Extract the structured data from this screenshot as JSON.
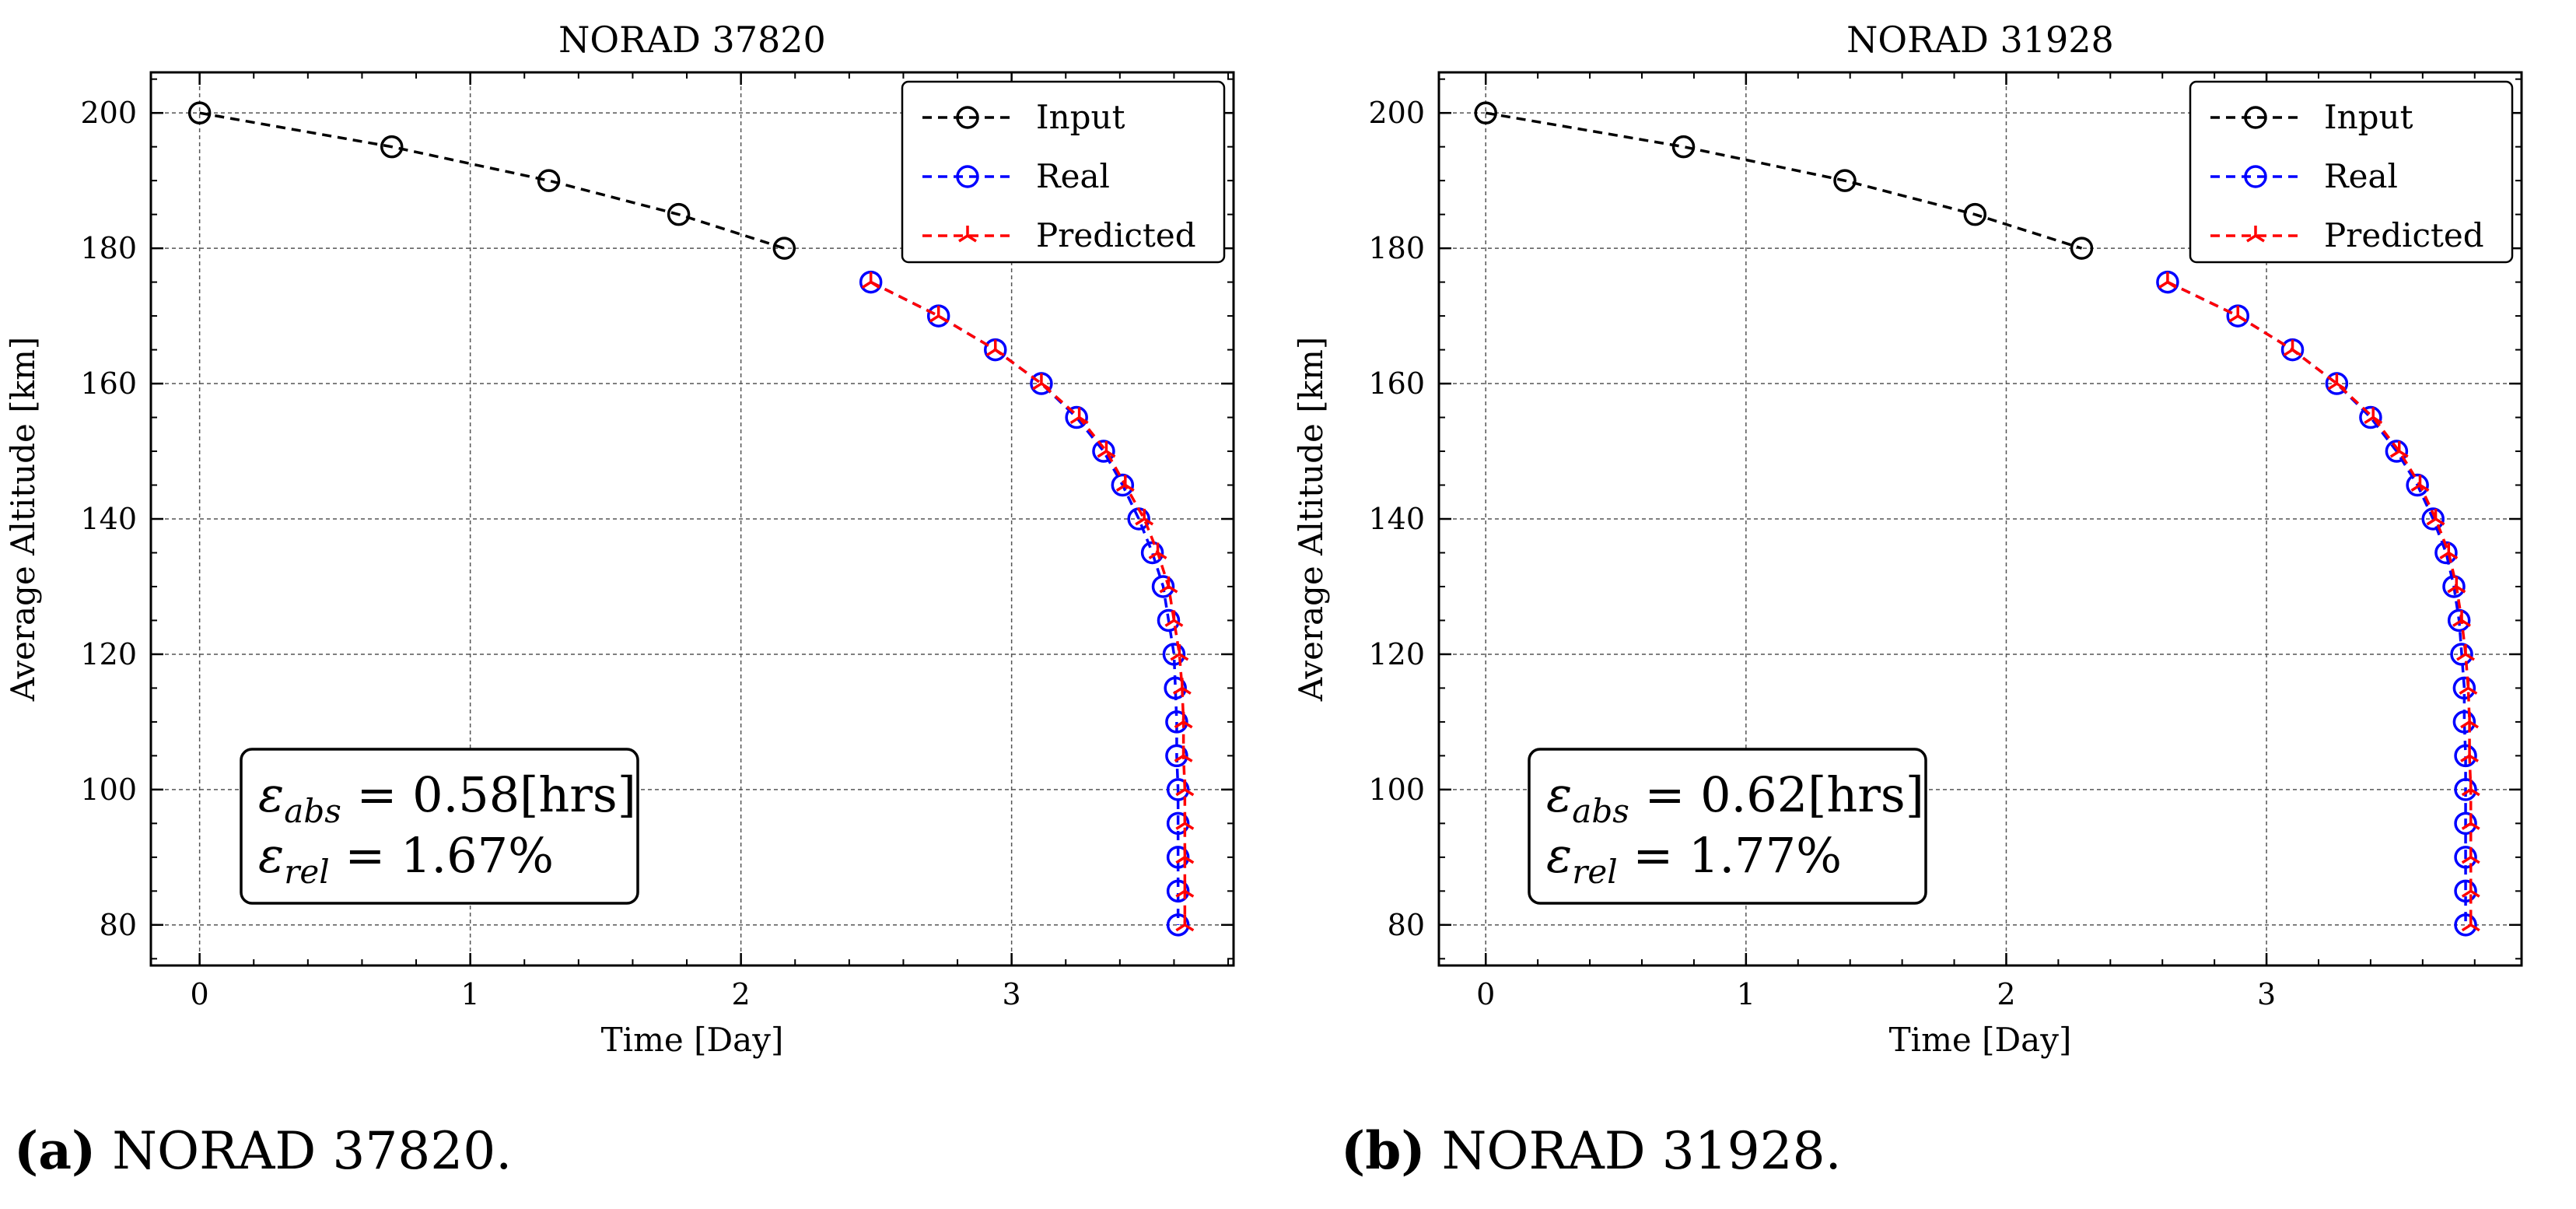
{
  "chart_data": [
    {
      "type": "line",
      "title": "NORAD 37820",
      "xlabel": "Time [Day]",
      "ylabel": "Average Altitude [km]",
      "xlim": [
        -0.18,
        3.82
      ],
      "ylim": [
        74,
        206
      ],
      "xticks": [
        0,
        1,
        2,
        3
      ],
      "yticks": [
        80,
        100,
        120,
        140,
        160,
        180,
        200
      ],
      "grid": true,
      "legend_position": "top-right",
      "annotation": {
        "line1_symbol": "ε",
        "line1_sub": "abs",
        "line1_value": " = 0.58[hrs]",
        "line2_symbol": "ε",
        "line2_sub": "rel",
        "line2_value": " = 1.67%"
      },
      "series": [
        {
          "name": "Input",
          "color": "#000000",
          "marker": "circle",
          "points": [
            [
              0,
              200
            ],
            [
              0.71,
              195
            ],
            [
              1.29,
              190
            ],
            [
              1.77,
              185
            ],
            [
              2.16,
              180
            ]
          ]
        },
        {
          "name": "Real",
          "color": "#0000ff",
          "marker": "circle",
          "points": [
            [
              2.48,
              175
            ],
            [
              2.73,
              170
            ],
            [
              2.94,
              165
            ],
            [
              3.11,
              160
            ],
            [
              3.24,
              155
            ],
            [
              3.34,
              150
            ],
            [
              3.41,
              145
            ],
            [
              3.47,
              140
            ],
            [
              3.52,
              135
            ],
            [
              3.56,
              130
            ],
            [
              3.58,
              125
            ],
            [
              3.6,
              120
            ],
            [
              3.605,
              115
            ],
            [
              3.61,
              110
            ],
            [
              3.61,
              105
            ],
            [
              3.615,
              100
            ],
            [
              3.615,
              95
            ],
            [
              3.615,
              90
            ],
            [
              3.615,
              85
            ],
            [
              3.615,
              80
            ]
          ]
        },
        {
          "name": "Predicted",
          "color": "#ff0000",
          "marker": "tri",
          "points": [
            [
              2.48,
              175
            ],
            [
              2.73,
              170
            ],
            [
              2.94,
              165
            ],
            [
              3.11,
              160
            ],
            [
              3.25,
              155
            ],
            [
              3.35,
              150
            ],
            [
              3.42,
              145
            ],
            [
              3.49,
              140
            ],
            [
              3.54,
              135
            ],
            [
              3.58,
              130
            ],
            [
              3.6,
              125
            ],
            [
              3.62,
              120
            ],
            [
              3.63,
              115
            ],
            [
              3.635,
              110
            ],
            [
              3.635,
              105
            ],
            [
              3.64,
              100
            ],
            [
              3.64,
              95
            ],
            [
              3.64,
              90
            ],
            [
              3.64,
              85
            ],
            [
              3.64,
              80
            ]
          ]
        }
      ]
    },
    {
      "type": "line",
      "title": "NORAD 31928",
      "xlabel": "Time [Day]",
      "ylabel": "Average Altitude [km]",
      "xlim": [
        -0.18,
        3.98
      ],
      "ylim": [
        74,
        206
      ],
      "xticks": [
        0,
        1,
        2,
        3
      ],
      "yticks": [
        80,
        100,
        120,
        140,
        160,
        180,
        200
      ],
      "grid": true,
      "legend_position": "top-right",
      "annotation": {
        "line1_symbol": "ε",
        "line1_sub": "abs",
        "line1_value": " = 0.62[hrs]",
        "line2_symbol": "ε",
        "line2_sub": "rel",
        "line2_value": " = 1.77%"
      },
      "series": [
        {
          "name": "Input",
          "color": "#000000",
          "marker": "circle",
          "points": [
            [
              0,
              200
            ],
            [
              0.76,
              195
            ],
            [
              1.38,
              190
            ],
            [
              1.88,
              185
            ],
            [
              2.29,
              180
            ]
          ]
        },
        {
          "name": "Real",
          "color": "#0000ff",
          "marker": "circle",
          "points": [
            [
              2.62,
              175
            ],
            [
              2.89,
              170
            ],
            [
              3.1,
              165
            ],
            [
              3.27,
              160
            ],
            [
              3.4,
              155
            ],
            [
              3.5,
              150
            ],
            [
              3.58,
              145
            ],
            [
              3.64,
              140
            ],
            [
              3.69,
              135
            ],
            [
              3.72,
              130
            ],
            [
              3.74,
              125
            ],
            [
              3.75,
              120
            ],
            [
              3.76,
              115
            ],
            [
              3.76,
              110
            ],
            [
              3.765,
              105
            ],
            [
              3.765,
              100
            ],
            [
              3.765,
              95
            ],
            [
              3.765,
              90
            ],
            [
              3.765,
              85
            ],
            [
              3.765,
              80
            ]
          ]
        },
        {
          "name": "Predicted",
          "color": "#ff0000",
          "marker": "tri",
          "points": [
            [
              2.62,
              175
            ],
            [
              2.89,
              170
            ],
            [
              3.1,
              165
            ],
            [
              3.27,
              160
            ],
            [
              3.41,
              155
            ],
            [
              3.51,
              150
            ],
            [
              3.59,
              145
            ],
            [
              3.65,
              140
            ],
            [
              3.7,
              135
            ],
            [
              3.73,
              130
            ],
            [
              3.75,
              125
            ],
            [
              3.765,
              120
            ],
            [
              3.775,
              115
            ],
            [
              3.78,
              110
            ],
            [
              3.78,
              105
            ],
            [
              3.785,
              100
            ],
            [
              3.785,
              95
            ],
            [
              3.785,
              90
            ],
            [
              3.785,
              85
            ],
            [
              3.785,
              80
            ]
          ]
        }
      ]
    }
  ],
  "captions": [
    {
      "label": "(a)",
      "text": " NORAD 37820."
    },
    {
      "label": "(b)",
      "text": " NORAD 31928."
    }
  ]
}
